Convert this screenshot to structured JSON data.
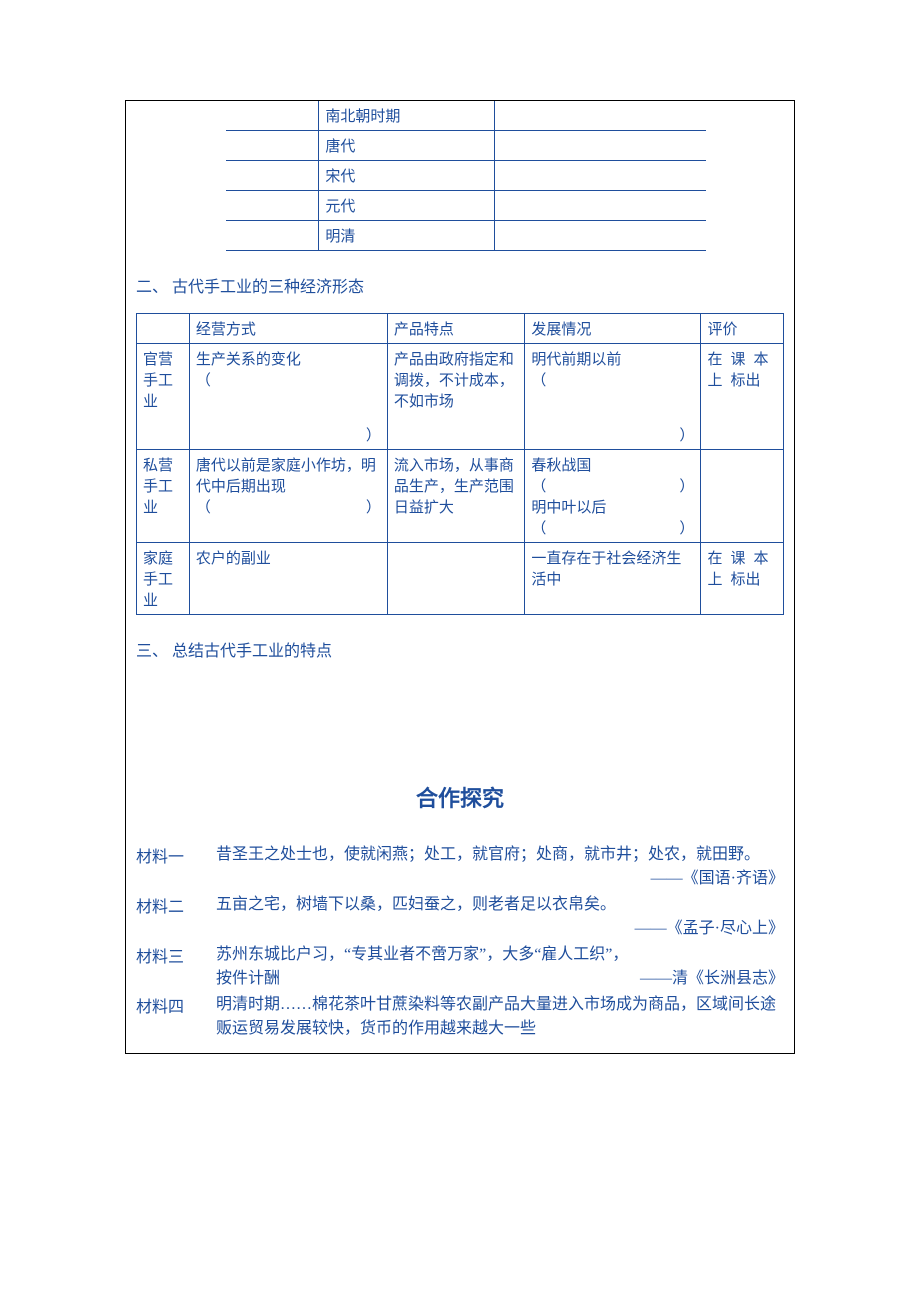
{
  "text_color": "#1f4e9c",
  "border_color": "#1f4e9c",
  "outer_border_color": "#000000",
  "background_color": "#ffffff",
  "body_font_size": 16,
  "table_font_size": 15,
  "title_font_size": 22,
  "table1": {
    "rows": [
      {
        "c1": "",
        "c2": "南北朝时期",
        "c3": ""
      },
      {
        "c1": "",
        "c2": "唐代",
        "c3": ""
      },
      {
        "c1": "",
        "c2": "宋代",
        "c3": ""
      },
      {
        "c1": "",
        "c2": "元代",
        "c3": ""
      },
      {
        "c1": "",
        "c2": "明清",
        "c3": ""
      }
    ]
  },
  "section2_heading": "二、 古代手工业的三种经济形态",
  "table2": {
    "header": {
      "c1": "",
      "c2": "经营方式",
      "c3": "产品特点",
      "c4": "发展情况",
      "c5": "评价"
    },
    "rows": [
      {
        "c1": "官营手工业",
        "c2_l1": "生产关系的变化",
        "c2_l2": "（",
        "c2_l3": "）",
        "c3": "产品由政府指定和调拨，不计成本，不如市场",
        "c4_l1": "明代前期以前",
        "c4_l2": "（",
        "c4_l3": "）",
        "c5": "在课本上标出"
      },
      {
        "c1": "私营手工业",
        "c2_l1": "唐代以前是家庭小作坊，明代中后期出现",
        "c2_l2": "（",
        "c2_l3": "）",
        "c3": "流入市场，从事商品生产，生产范围日益扩大",
        "c4_l1": "春秋战国",
        "c4_l2a": "（",
        "c4_l2b": "）",
        "c4_l3": "明中叶以后",
        "c4_l4a": "（",
        "c4_l4b": "）",
        "c5": ""
      },
      {
        "c1": "家庭手工业",
        "c2": "农户的副业",
        "c3": "",
        "c4": "一直存在于社会经济生活中",
        "c5": "在课本上标出"
      }
    ]
  },
  "section3_heading": "三、 总结古代手工业的特点",
  "center_title": "合作探究",
  "materials": [
    {
      "label": "材料一",
      "text": "昔圣王之处士也，使就闲燕；处工，就官府；处商，就市井；处农，就田野。",
      "source": "——《国语·齐语》"
    },
    {
      "label": "材料二",
      "text": "五亩之宅，树墙下以桑，匹妇蚕之，则老者足以衣帛矣。",
      "source": "——《孟子·尽心上》"
    },
    {
      "label": "材料三",
      "text_a": "苏州东城比户习，“专其业者不啻万家”，大多“雇人工织”，",
      "text_b": "按件计酬",
      "source": "——清《长洲县志》"
    },
    {
      "label": "材料四",
      "text": "明清时期……棉花茶叶甘蔗染料等农副产品大量进入市场成为商品，区域间长途贩运贸易发展较快，货币的作用越来越大一些"
    }
  ]
}
